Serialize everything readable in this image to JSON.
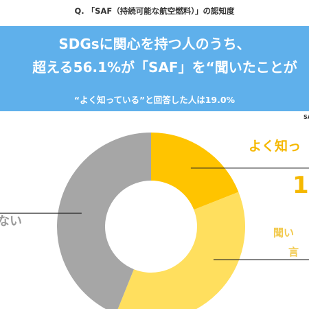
{
  "question": "Q. 「SAF（持続可能な航空燃料）」の認知度",
  "banner": {
    "line1": "SDGsに関心を持つ人のうち、",
    "line2": "超える56.1%が「SAF」を“聞いたことが",
    "note": "“よく知っている”と回答した人は19.0%",
    "color": "#5fb0eb"
  },
  "source_fragment": "SA",
  "labels": {
    "well_known": "よく知っ",
    "well_known_pct": "1",
    "heard_1": "聞い",
    "heard_2": "言",
    "unknown": "ない"
  },
  "chart_data": {
    "type": "pie",
    "donut": true,
    "series": [
      {
        "name": "よく知っている",
        "value": 19.0,
        "color": "#ffc400"
      },
      {
        "name": "聞いたことがある",
        "value": 37.1,
        "color": "#ffdf5e"
      },
      {
        "name": "知らない",
        "value": 43.9,
        "color": "#a6a6a6"
      }
    ]
  }
}
